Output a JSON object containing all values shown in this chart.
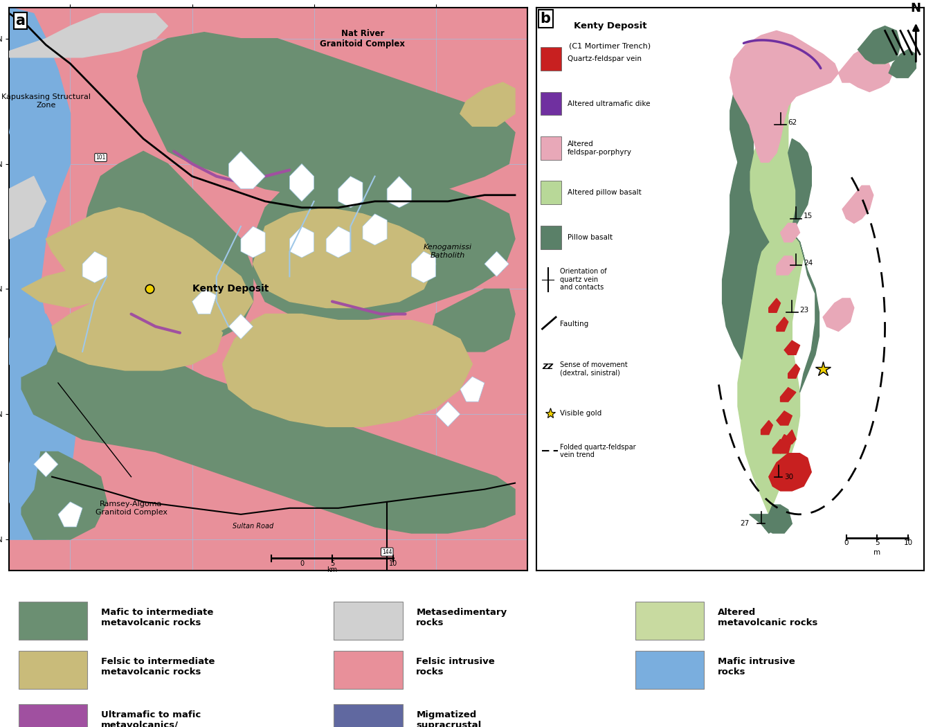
{
  "background_color": "#ffffff",
  "colors": {
    "mafic_metavolcanic": "#6b8f72",
    "felsic_metavolcanic": "#c9bb7a",
    "ultramafic": "#a050a0",
    "metasedimentary": "#d0d0d0",
    "felsic_intrusive": "#e8909a",
    "migmatized": "#6068a0",
    "altered_metavolcanic": "#c8daa0",
    "mafic_intrusive": "#7aaede",
    "quartz_vein": "#c82020",
    "altered_ultramafic_dike": "#7030a0",
    "altered_feldspar_porphyry": "#e8a8b8",
    "altered_pillow_basalt": "#b8d898",
    "pillow_basalt": "#5a8068",
    "grid_color": "#a0c0e0",
    "water_blue": "#a0c8e8",
    "water_white": "#ffffff"
  },
  "legend_bottom": [
    {
      "color": "#6b8f72",
      "label": "Mafic to intermediate\nmetavolcanic rocks"
    },
    {
      "color": "#c9bb7a",
      "label": "Felsic to intermediate\nmetavolcanic rocks"
    },
    {
      "color": "#a050a0",
      "label": "Ultramafic to mafic\nmetavolcanics/\nintrusive rocks"
    },
    {
      "color": "#d0d0d0",
      "label": "Metasedimentary\nrocks"
    },
    {
      "color": "#e8909a",
      "label": "Felsic intrusive\nrocks"
    },
    {
      "color": "#6068a0",
      "label": "Migmatized\nsupracrustal\nrocks"
    },
    {
      "color": "#c8daa0",
      "label": "Altered\nmetavolcanic rocks"
    },
    {
      "color": "#7aaede",
      "label": "Mafic intrusive\nrocks"
    }
  ]
}
